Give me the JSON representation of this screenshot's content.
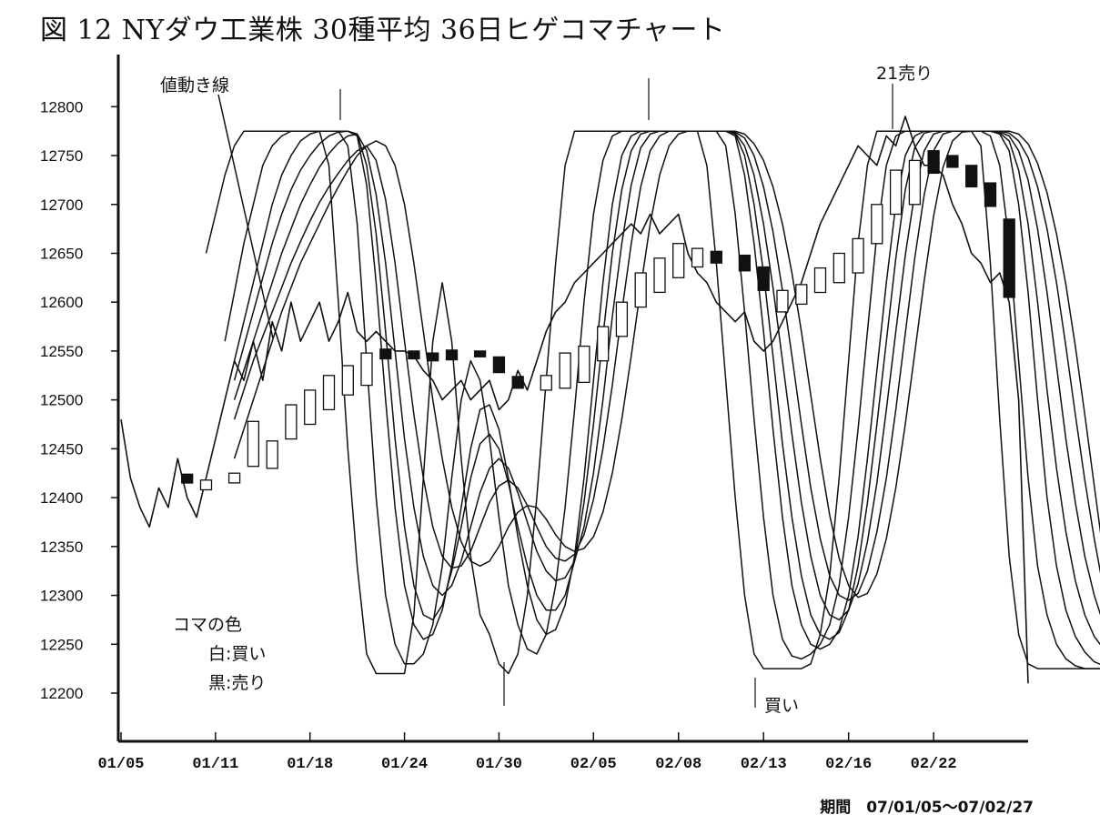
{
  "chart_data": {
    "type": "line",
    "title": "図 12 NYダウ工業株 30種平均 36日ヒゲコマチャート",
    "xlabel": "",
    "ylabel": "",
    "period_label": "期間　07/01/05～07/02/27",
    "ylim": [
      12150,
      12850
    ],
    "y_ticks": [
      12200,
      12250,
      12300,
      12350,
      12400,
      12450,
      12500,
      12550,
      12600,
      12650,
      12700,
      12750,
      12800
    ],
    "x_tick_labels": [
      "01/05",
      "01/11",
      "01/18",
      "01/24",
      "01/30",
      "02/05",
      "02/08",
      "02/13",
      "02/16",
      "02/22"
    ],
    "x_tick_index": [
      0,
      10,
      20,
      30,
      40,
      50,
      59,
      68,
      77,
      86
    ],
    "grid": false,
    "legend": {
      "title": "コマの色",
      "items": [
        {
          "label": "白:買い",
          "color": "white"
        },
        {
          "label": "黒:売り",
          "color": "black"
        }
      ]
    },
    "annotations": {
      "price_line": "値動き線",
      "sell_signal": "21売り",
      "buy_signal": "買い"
    },
    "candles": [
      {
        "i": 7,
        "open": 12415,
        "close": 12424,
        "color": "black"
      },
      {
        "i": 9,
        "open": 12408,
        "close": 12418,
        "color": "white"
      },
      {
        "i": 12,
        "open": 12415,
        "close": 12425,
        "color": "white"
      },
      {
        "i": 14,
        "open": 12432,
        "close": 12478,
        "color": "white"
      },
      {
        "i": 16,
        "open": 12430,
        "close": 12458,
        "color": "white"
      },
      {
        "i": 18,
        "open": 12460,
        "close": 12495,
        "color": "white"
      },
      {
        "i": 20,
        "open": 12475,
        "close": 12510,
        "color": "white"
      },
      {
        "i": 22,
        "open": 12490,
        "close": 12525,
        "color": "white"
      },
      {
        "i": 24,
        "open": 12505,
        "close": 12535,
        "color": "white"
      },
      {
        "i": 26,
        "open": 12515,
        "close": 12548,
        "color": "white"
      },
      {
        "i": 28,
        "open": 12542,
        "close": 12552,
        "color": "black"
      },
      {
        "i": 31,
        "open": 12542,
        "close": 12550,
        "color": "black"
      },
      {
        "i": 33,
        "open": 12540,
        "close": 12548,
        "color": "black"
      },
      {
        "i": 35,
        "open": 12541,
        "close": 12551,
        "color": "black"
      },
      {
        "i": 38,
        "open": 12544,
        "close": 12550,
        "color": "black"
      },
      {
        "i": 40,
        "open": 12528,
        "close": 12544,
        "color": "black"
      },
      {
        "i": 42,
        "open": 12512,
        "close": 12524,
        "color": "black"
      },
      {
        "i": 45,
        "open": 12510,
        "close": 12525,
        "color": "white"
      },
      {
        "i": 47,
        "open": 12512,
        "close": 12548,
        "color": "white"
      },
      {
        "i": 49,
        "open": 12518,
        "close": 12555,
        "color": "white"
      },
      {
        "i": 51,
        "open": 12540,
        "close": 12575,
        "color": "white"
      },
      {
        "i": 53,
        "open": 12565,
        "close": 12600,
        "color": "white"
      },
      {
        "i": 55,
        "open": 12595,
        "close": 12630,
        "color": "white"
      },
      {
        "i": 57,
        "open": 12610,
        "close": 12645,
        "color": "white"
      },
      {
        "i": 59,
        "open": 12625,
        "close": 12660,
        "color": "white"
      },
      {
        "i": 61,
        "open": 12636,
        "close": 12655,
        "color": "white"
      },
      {
        "i": 63,
        "open": 12640,
        "close": 12652,
        "color": "black"
      },
      {
        "i": 66,
        "open": 12632,
        "close": 12648,
        "color": "black"
      },
      {
        "i": 68,
        "open": 12612,
        "close": 12636,
        "color": "black"
      },
      {
        "i": 70,
        "open": 12590,
        "close": 12612,
        "color": "white"
      },
      {
        "i": 72,
        "open": 12598,
        "close": 12618,
        "color": "white"
      },
      {
        "i": 74,
        "open": 12610,
        "close": 12635,
        "color": "white"
      },
      {
        "i": 76,
        "open": 12620,
        "close": 12650,
        "color": "white"
      },
      {
        "i": 78,
        "open": 12630,
        "close": 12665,
        "color": "white"
      },
      {
        "i": 80,
        "open": 12660,
        "close": 12700,
        "color": "white"
      },
      {
        "i": 82,
        "open": 12690,
        "close": 12735,
        "color": "white"
      },
      {
        "i": 84,
        "open": 12700,
        "close": 12745,
        "color": "white"
      },
      {
        "i": 86,
        "open": 12732,
        "close": 12755,
        "color": "black"
      },
      {
        "i": 88,
        "open": 12738,
        "close": 12750,
        "color": "black"
      },
      {
        "i": 90,
        "open": 12718,
        "close": 12740,
        "color": "black"
      },
      {
        "i": 92,
        "open": 12698,
        "close": 12722,
        "color": "black"
      },
      {
        "i": 94,
        "open": 12605,
        "close": 12685,
        "color": "black"
      }
    ],
    "series": [
      {
        "values": [
          12480,
          12420,
          12390,
          12370,
          12410,
          12390,
          12440,
          12400,
          12380,
          12420,
          12460,
          12500,
          12540,
          12520,
          12560,
          12520,
          12580,
          12550,
          12600,
          12560,
          12580,
          12600,
          12560,
          12580,
          12610,
          12570,
          12560,
          12570,
          12560,
          12550,
          12550,
          12545,
          12530,
          12520,
          12500,
          12510,
          12520,
          12500,
          12510,
          12520,
          12490,
          12500,
          12530,
          12510,
          12540,
          12570,
          12590,
          12600,
          12620,
          12630,
          12640,
          12650,
          12660,
          12670,
          12680,
          12670,
          12690,
          12670,
          12680,
          12690,
          12650,
          12630,
          12620,
          12600,
          12590,
          12580,
          12590,
          12560,
          12550,
          12560,
          12580,
          12600,
          12620,
          12650,
          12680,
          12700,
          12720,
          12740,
          12760,
          12750,
          12740,
          12770,
          12760,
          12790,
          12760,
          12740,
          12740,
          12730,
          12700,
          12680,
          12650,
          12640,
          12620,
          12630,
          12600,
          12500,
          12210
        ]
      },
      {
        "values": [
          12650,
          12690,
          12730,
          12760,
          12775,
          12775,
          12775,
          12775,
          12775,
          12775,
          12775,
          12775,
          12775,
          12740,
          12600,
          12450,
          12330,
          12240,
          12220,
          12220,
          12220,
          12220,
          12280,
          12420,
          12560,
          12620,
          12560,
          12440,
          12340,
          12280,
          12260,
          12230,
          12220,
          12240,
          12300,
          12400,
          12520,
          12640,
          12740,
          12775,
          12775,
          12775,
          12775,
          12775,
          12775,
          12775,
          12775,
          12775,
          12775,
          12775,
          12775,
          12775,
          12775,
          12740,
          12640,
          12520,
          12400,
          12300,
          12240,
          12225,
          12225,
          12225,
          12225,
          12225,
          12230,
          12260,
          12320,
          12420,
          12540,
          12660,
          12740,
          12775,
          12775,
          12775,
          12775,
          12775,
          12775,
          12775,
          12775,
          12775,
          12775,
          12775,
          12760,
          12640,
          12480,
          12340,
          12260,
          12230,
          12225,
          12225,
          12225,
          12225,
          12225,
          12225,
          12225,
          12225,
          12225
        ],
        "start_index": 9
      },
      {
        "values": [
          12560,
          12610,
          12660,
          12700,
          12740,
          12760,
          12770,
          12775,
          12775,
          12775,
          12775,
          12775,
          12775,
          12760,
          12680,
          12540,
          12400,
          12300,
          12250,
          12230,
          12230,
          12240,
          12270,
          12330,
          12420,
          12500,
          12540,
          12520,
          12460,
          12380,
          12310,
          12270,
          12245,
          12240,
          12260,
          12310,
          12390,
          12490,
          12600,
          12690,
          12745,
          12770,
          12775,
          12775,
          12775,
          12775,
          12775,
          12775,
          12775,
          12775,
          12775,
          12775,
          12775,
          12760,
          12690,
          12590,
          12480,
          12380,
          12300,
          12255,
          12238,
          12235,
          12240,
          12250,
          12270,
          12310,
          12380,
          12470,
          12570,
          12670,
          12740,
          12770,
          12775,
          12775,
          12775,
          12775,
          12775,
          12775,
          12775,
          12775,
          12775,
          12770,
          12740,
          12660,
          12540,
          12420,
          12330,
          12280,
          12250,
          12235,
          12228,
          12225,
          12225,
          12225,
          12225
        ],
        "start_index": 11
      },
      {
        "values": [
          12540,
          12580,
          12620,
          12660,
          12700,
          12730,
          12750,
          12765,
          12772,
          12775,
          12775,
          12775,
          12775,
          12770,
          12720,
          12620,
          12500,
          12390,
          12310,
          12270,
          12255,
          12260,
          12285,
          12330,
          12390,
          12450,
          12490,
          12495,
          12470,
          12420,
          12360,
          12310,
          12275,
          12260,
          12265,
          12290,
          12340,
          12420,
          12520,
          12620,
          12700,
          12750,
          12770,
          12775,
          12775,
          12775,
          12775,
          12775,
          12775,
          12775,
          12775,
          12775,
          12775,
          12770,
          12730,
          12660,
          12570,
          12470,
          12380,
          12310,
          12270,
          12250,
          12245,
          12250,
          12265,
          12300,
          12360,
          12440,
          12530,
          12620,
          12700,
          12750,
          12770,
          12775,
          12775,
          12775,
          12775,
          12775,
          12775,
          12775,
          12775,
          12772,
          12755,
          12700,
          12610,
          12500,
          12400,
          12330,
          12285,
          12258,
          12242,
          12232,
          12228
        ],
        "start_index": 12
      },
      {
        "values": [
          12520,
          12555,
          12590,
          12625,
          12660,
          12690,
          12715,
          12735,
          12750,
          12762,
          12770,
          12774,
          12775,
          12772,
          12740,
          12670,
          12570,
          12460,
          12370,
          12310,
          12280,
          12275,
          12290,
          12325,
          12370,
          12420,
          12455,
          12465,
          12450,
          12415,
          12370,
          12330,
          12300,
          12285,
          12285,
          12300,
          12335,
          12395,
          12475,
          12565,
          12650,
          12715,
          12755,
          12772,
          12775,
          12775,
          12775,
          12775,
          12775,
          12775,
          12775,
          12775,
          12775,
          12772,
          12750,
          12700,
          12630,
          12545,
          12455,
          12380,
          12320,
          12280,
          12260,
          12255,
          12262,
          12285,
          12330,
          12395,
          12475,
          12560,
          12645,
          12715,
          12758,
          12773,
          12775,
          12775,
          12775,
          12775,
          12775,
          12775,
          12775,
          12773,
          12765,
          12735,
          12680,
          12600,
          12510,
          12430,
          12365,
          12315,
          12280,
          12258,
          12245
        ],
        "start_index": 12
      },
      {
        "values": [
          12500,
          12530,
          12560,
          12590,
          12620,
          12650,
          12675,
          12700,
          12720,
          12738,
          12752,
          12763,
          12770,
          12772,
          12755,
          12710,
          12640,
          12550,
          12460,
          12390,
          12340,
          12310,
          12300,
          12310,
          12335,
          12370,
          12405,
          12430,
          12440,
          12430,
          12405,
          12375,
          12345,
          12325,
          12315,
          12318,
          12335,
          12370,
          12425,
          12500,
          12585,
          12660,
          12720,
          12758,
          12772,
          12775,
          12775,
          12775,
          12775,
          12775,
          12775,
          12775,
          12775,
          12773,
          12760,
          12730,
          12680,
          12615,
          12540,
          12465,
          12395,
          12340,
          12300,
          12280,
          12275,
          12285,
          12312,
          12355,
          12415,
          12490,
          12570,
          12648,
          12712,
          12755,
          12772,
          12775,
          12775,
          12775,
          12775,
          12775,
          12775,
          12774,
          12770,
          12755,
          12725,
          12675,
          12610,
          12535,
          12460,
          12395,
          12340,
          12300,
          12270
        ],
        "start_index": 12
      },
      {
        "values": [
          12480,
          12510,
          12540,
          12565,
          12590,
          12615,
          12640,
          12662,
          12683,
          12702,
          12718,
          12732,
          12745,
          12755,
          12760,
          12745,
          12705,
          12640,
          12560,
          12485,
          12420,
          12370,
          12340,
          12328,
          12330,
          12345,
          12370,
          12395,
          12412,
          12418,
          12410,
          12392,
          12370,
          12350,
          12338,
          12335,
          12342,
          12362,
          12398,
          12450,
          12515,
          12590,
          12660,
          12718,
          12755,
          12770,
          12775,
          12775,
          12775,
          12775,
          12775,
          12775,
          12775,
          12774,
          12768,
          12750,
          12718,
          12672,
          12612,
          12545,
          12475,
          12410,
          12358,
          12320,
          12300,
          12295,
          12302,
          12325,
          12365,
          12420,
          12490,
          12568,
          12645,
          12710,
          12755,
          12772,
          12775,
          12775,
          12775,
          12775,
          12775,
          12775,
          12773,
          12765,
          12748,
          12718,
          12675,
          12620,
          12555,
          12485,
          12418,
          12358,
          12305
        ],
        "start_index": 12
      },
      {
        "values": [
          12440,
          12470,
          12500,
          12530,
          12560,
          12590,
          12615,
          12640,
          12660,
          12680,
          12700,
          12718,
          12735,
          12750,
          12760,
          12765,
          12760,
          12740,
          12700,
          12640,
          12570,
          12500,
          12440,
          12390,
          12355,
          12335,
          12330,
          12335,
          12350,
          12370,
          12385,
          12392,
          12390,
          12378,
          12362,
          12350,
          12345,
          12348,
          12360,
          12385,
          12425,
          12480,
          12545,
          12615,
          12680,
          12730,
          12760,
          12772,
          12775,
          12775,
          12775,
          12775,
          12775,
          12775,
          12772,
          12762,
          12745,
          12718,
          12680,
          12630,
          12570,
          12505,
          12440,
          12382,
          12338,
          12310,
          12298,
          12302,
          12322,
          12358,
          12410,
          12475,
          12548,
          12622,
          12688,
          12738,
          12765,
          12774,
          12775,
          12775,
          12775,
          12775,
          12775,
          12772,
          12762,
          12742,
          12712,
          12670,
          12618,
          12555,
          12485,
          12412,
          12340
        ],
        "start_index": 12
      }
    ]
  }
}
